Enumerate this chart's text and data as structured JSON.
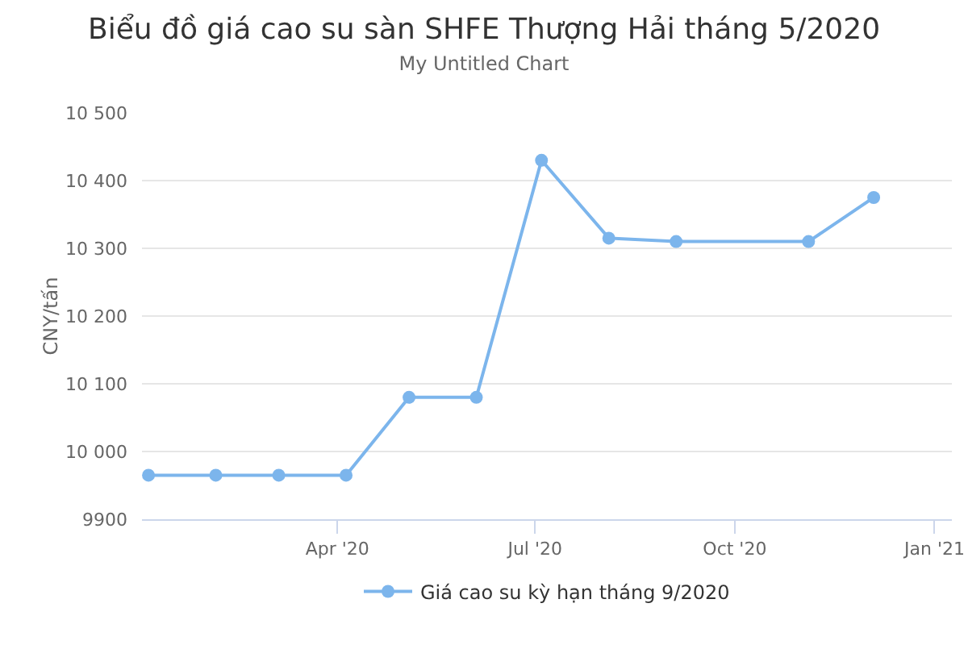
{
  "chart_data": {
    "type": "line",
    "title": "Biểu đồ giá cao su sàn SHFE Thượng Hải tháng 5/2020",
    "subtitle": "My Untitled Chart",
    "ylabel": "CNY/tấn",
    "x": [
      "2020-01-05",
      "2020-02-05",
      "2020-03-05",
      "2020-04-05",
      "2020-05-04",
      "2020-06-04",
      "2020-07-04",
      "2020-08-04",
      "2020-09-04",
      "2020-11-04",
      "2020-12-04"
    ],
    "series": [
      {
        "name": "Giá cao su kỳ hạn tháng 9/2020",
        "color": "#7cb5ec",
        "values": [
          9965,
          9965,
          9965,
          9965,
          10080,
          10080,
          10430,
          10315,
          10310,
          10310,
          10375
        ]
      }
    ],
    "xlim": [
      "2020-01-02",
      "2021-01-09"
    ],
    "xticks": [
      {
        "value": "2020-04-01",
        "label": "Apr '20"
      },
      {
        "value": "2020-07-01",
        "label": "Jul '20"
      },
      {
        "value": "2020-10-01",
        "label": "Oct '20"
      },
      {
        "value": "2021-01-01",
        "label": "Jan '21"
      }
    ],
    "ylim": [
      9900,
      10500
    ],
    "yticks": [
      9900,
      {
        "value": 10000,
        "label": "10 000"
      },
      {
        "value": 10100,
        "label": "10 100"
      },
      {
        "value": 10200,
        "label": "10 200"
      },
      {
        "value": 10300,
        "label": "10 300"
      },
      {
        "value": 10400,
        "label": "10 400"
      },
      {
        "value": 10500,
        "label": "10 500"
      }
    ],
    "grid": "y",
    "legend": "bottom",
    "marker": "circle",
    "line_style": "solid"
  }
}
